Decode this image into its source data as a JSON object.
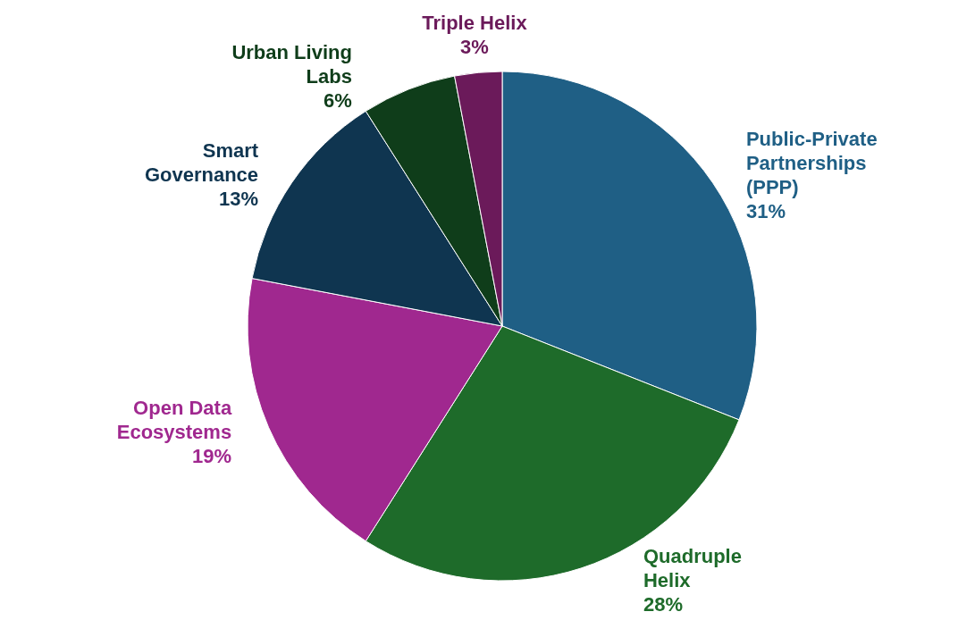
{
  "chart_data": {
    "type": "pie",
    "categories": [
      "Public-Private Partnerships (PPP)",
      "Quadruple Helix",
      "Open Data Ecosystems",
      "Smart Governance",
      "Urban Living Labs",
      "Triple Helix"
    ],
    "values": [
      31,
      28,
      19,
      13,
      6,
      3
    ],
    "value_labels": [
      "31%",
      "28%",
      "19%",
      "13%",
      "6%",
      "3%"
    ],
    "colors": [
      "#1f5f85",
      "#1e6b2a",
      "#a0288f",
      "#0f3550",
      "#0f3d1a",
      "#6b1a5a"
    ]
  }
}
